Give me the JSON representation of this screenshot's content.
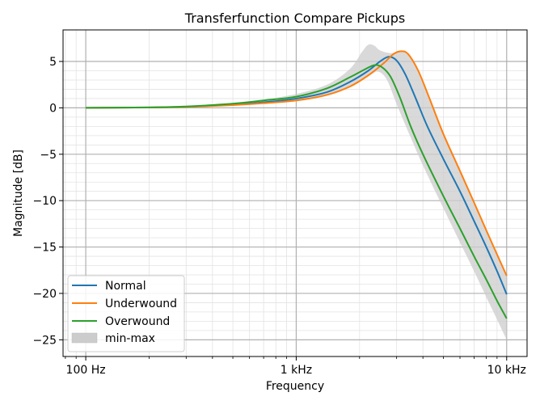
{
  "chart_data": {
    "type": "line",
    "title": "Transferfunction Compare Pickups",
    "xlabel": "Frequency",
    "ylabel": "Magnitude [dB]",
    "xscale": "log",
    "xlim": [
      78,
      12500
    ],
    "ylim": [
      -26.8,
      8.4
    ],
    "grid": "major and minor",
    "legend_position": "lower-left",
    "x_ticks": [
      {
        "value": 100,
        "label": "100 Hz"
      },
      {
        "value": 1000,
        "label": "1 kHz"
      },
      {
        "value": 10000,
        "label": "10 kHz"
      }
    ],
    "y_ticks": [
      {
        "value": 5,
        "label": "5"
      },
      {
        "value": 0,
        "label": "0"
      },
      {
        "value": -5,
        "label": "−5"
      },
      {
        "value": -10,
        "label": "−10"
      },
      {
        "value": -15,
        "label": "−15"
      },
      {
        "value": -20,
        "label": "−20"
      },
      {
        "value": -25,
        "label": "−25"
      }
    ],
    "series": [
      {
        "name": "Normal",
        "color": "#1f77b4",
        "points": [
          [
            100,
            0
          ],
          [
            200,
            0.05
          ],
          [
            300,
            0.12
          ],
          [
            500,
            0.35
          ],
          [
            700,
            0.6
          ],
          [
            1000,
            1.0
          ],
          [
            1400,
            1.7
          ],
          [
            1800,
            2.8
          ],
          [
            2200,
            4.0
          ],
          [
            2500,
            5.0
          ],
          [
            2750,
            5.5
          ],
          [
            3000,
            5.1
          ],
          [
            3300,
            3.6
          ],
          [
            3700,
            1.0
          ],
          [
            4200,
            -2.0
          ],
          [
            5000,
            -5.5
          ],
          [
            6000,
            -9.0
          ],
          [
            7000,
            -12.2
          ],
          [
            8000,
            -15.0
          ],
          [
            9000,
            -17.6
          ],
          [
            10000,
            -20.1
          ]
        ]
      },
      {
        "name": "Underwound",
        "color": "#ff7f0e",
        "points": [
          [
            100,
            0
          ],
          [
            200,
            0.04
          ],
          [
            300,
            0.1
          ],
          [
            500,
            0.3
          ],
          [
            700,
            0.5
          ],
          [
            1000,
            0.8
          ],
          [
            1400,
            1.4
          ],
          [
            1800,
            2.3
          ],
          [
            2200,
            3.5
          ],
          [
            2600,
            4.8
          ],
          [
            2900,
            5.8
          ],
          [
            3150,
            6.1
          ],
          [
            3400,
            5.8
          ],
          [
            3800,
            4.0
          ],
          [
            4300,
            1.0
          ],
          [
            5000,
            -2.8
          ],
          [
            6000,
            -6.8
          ],
          [
            7000,
            -10.2
          ],
          [
            8000,
            -13.2
          ],
          [
            9000,
            -15.8
          ],
          [
            10000,
            -18.1
          ]
        ]
      },
      {
        "name": "Overwound",
        "color": "#2ca02c",
        "points": [
          [
            100,
            0
          ],
          [
            200,
            0.05
          ],
          [
            300,
            0.15
          ],
          [
            500,
            0.45
          ],
          [
            700,
            0.8
          ],
          [
            1000,
            1.2
          ],
          [
            1400,
            2.1
          ],
          [
            1800,
            3.3
          ],
          [
            2100,
            4.1
          ],
          [
            2350,
            4.6
          ],
          [
            2550,
            4.4
          ],
          [
            2800,
            3.4
          ],
          [
            3100,
            1.2
          ],
          [
            3500,
            -2.0
          ],
          [
            4000,
            -5.0
          ],
          [
            5000,
            -9.5
          ],
          [
            6000,
            -13.0
          ],
          [
            7000,
            -16.0
          ],
          [
            8000,
            -18.5
          ],
          [
            9000,
            -20.8
          ],
          [
            10000,
            -22.7
          ]
        ]
      }
    ],
    "band": {
      "name": "min-max",
      "color": "#cccccc",
      "upper": [
        [
          100,
          0
        ],
        [
          200,
          0.1
        ],
        [
          300,
          0.2
        ],
        [
          500,
          0.55
        ],
        [
          700,
          0.9
        ],
        [
          1000,
          1.5
        ],
        [
          1400,
          2.5
        ],
        [
          1800,
          4.2
        ],
        [
          2050,
          6.0
        ],
        [
          2200,
          6.8
        ],
        [
          2350,
          6.7
        ],
        [
          2500,
          6.2
        ],
        [
          2800,
          5.9
        ],
        [
          3150,
          6.1
        ],
        [
          3400,
          5.8
        ],
        [
          3800,
          4.0
        ],
        [
          4300,
          1.0
        ],
        [
          5000,
          -2.8
        ],
        [
          6000,
          -6.8
        ],
        [
          7000,
          -10.2
        ],
        [
          8000,
          -13.2
        ],
        [
          9000,
          -15.8
        ],
        [
          10000,
          -18.1
        ]
      ],
      "lower": [
        [
          100,
          0
        ],
        [
          200,
          0.02
        ],
        [
          300,
          0.08
        ],
        [
          500,
          0.25
        ],
        [
          700,
          0.45
        ],
        [
          1000,
          0.7
        ],
        [
          1400,
          1.3
        ],
        [
          1800,
          2.2
        ],
        [
          2200,
          3.4
        ],
        [
          2450,
          3.9
        ],
        [
          2700,
          3.0
        ],
        [
          3000,
          0.4
        ],
        [
          3500,
          -3.2
        ],
        [
          4000,
          -6.2
        ],
        [
          5000,
          -10.8
        ],
        [
          6000,
          -14.5
        ],
        [
          7000,
          -17.6
        ],
        [
          8000,
          -20.4
        ],
        [
          9000,
          -22.8
        ],
        [
          10000,
          -25.0
        ]
      ]
    }
  }
}
